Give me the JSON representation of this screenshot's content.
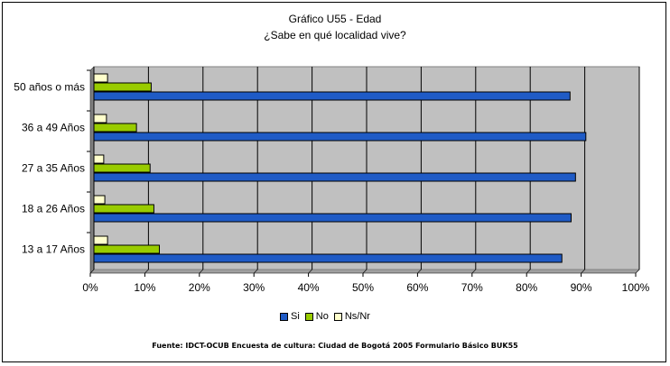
{
  "chart_data": {
    "type": "bar",
    "orientation": "horizontal",
    "title": "Gráfico U55 - Edad",
    "subtitle": "¿Sabe en qué localidad vive?",
    "categories": [
      "50 años o más",
      "36 a 49 Años",
      "27 a 35 Años",
      "18 a 26 Años",
      "13 a 17 Años"
    ],
    "series": [
      {
        "name": "Ns/Nr",
        "color": "#ffffcc",
        "values": [
          2.5,
          2.3,
          1.8,
          2.0,
          2.5
        ]
      },
      {
        "name": "No",
        "color": "#99cc00",
        "values": [
          10.5,
          7.8,
          10.3,
          11.0,
          12.0
        ]
      },
      {
        "name": "Si",
        "color": "#1f5bc6",
        "values": [
          87.3,
          90.2,
          88.3,
          87.5,
          85.8
        ]
      }
    ],
    "legend_order": [
      "Si",
      "No",
      "Ns/Nr"
    ],
    "xlim": [
      0,
      100
    ],
    "xticks": [
      "0%",
      "10%",
      "20%",
      "30%",
      "40%",
      "50%",
      "60%",
      "70%",
      "80%",
      "90%",
      "100%"
    ],
    "grid": true,
    "legend_position": "bottom",
    "plot_background": "#c0c0c0",
    "source": "Fuente: IDCT-OCUB Encuesta de cultura: Ciudad de Bogotá 2005 Formulario Básico  BUK55"
  }
}
